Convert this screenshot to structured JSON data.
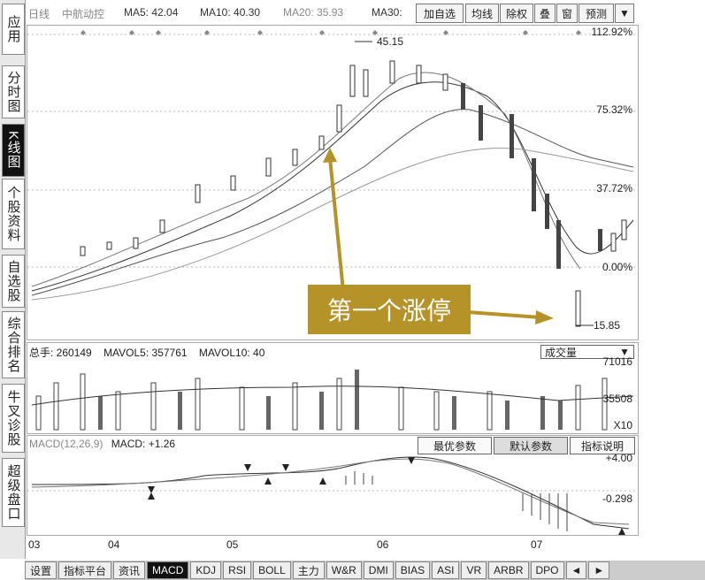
{
  "sidebar": [
    "应用",
    "分时图",
    "K线图",
    "个股资料",
    "自选股",
    "综合排名",
    "牛叉诊股",
    "超级盘口"
  ],
  "top": {
    "period": "日线",
    "stock": "中航动控",
    "ma5": "MA5: 42.04",
    "ma10": "MA10: 40.30",
    "ma20": "MA20: 35.93",
    "ma30": "MA30:",
    "buttons": [
      "加自选",
      "均线",
      "除权",
      "叠",
      "窗",
      "预测"
    ]
  },
  "price_labels": [
    "112.92%",
    "75.32%",
    "37.72%",
    "0.00%"
  ],
  "annotations": {
    "high": "45.15",
    "low": "15.85",
    "callout": "第一个涨停"
  },
  "volume": {
    "header": "总手: 260149",
    "mavol5": "MAVOL5: 357761",
    "mavol10": "MAVOL10: 40",
    "dropdown": "成交量",
    "labels": [
      "71016",
      "35508",
      "X10"
    ]
  },
  "macd": {
    "header": "MACD(12,26,9)",
    "value": "MACD: +1.26",
    "buttons": [
      "最优参数",
      "默认参数",
      "指标说明"
    ],
    "labels": [
      "+4.00",
      "-0.298"
    ]
  },
  "xaxis": [
    "03",
    "04",
    "05",
    "06",
    "07"
  ],
  "tabs": [
    "设置",
    "指标平台",
    "资讯",
    "MACD",
    "KDJ",
    "RSI",
    "BOLL",
    "主力",
    "W&R",
    "DMI",
    "BIAS",
    "ASI",
    "VR",
    "ARBR",
    "DPO"
  ]
}
